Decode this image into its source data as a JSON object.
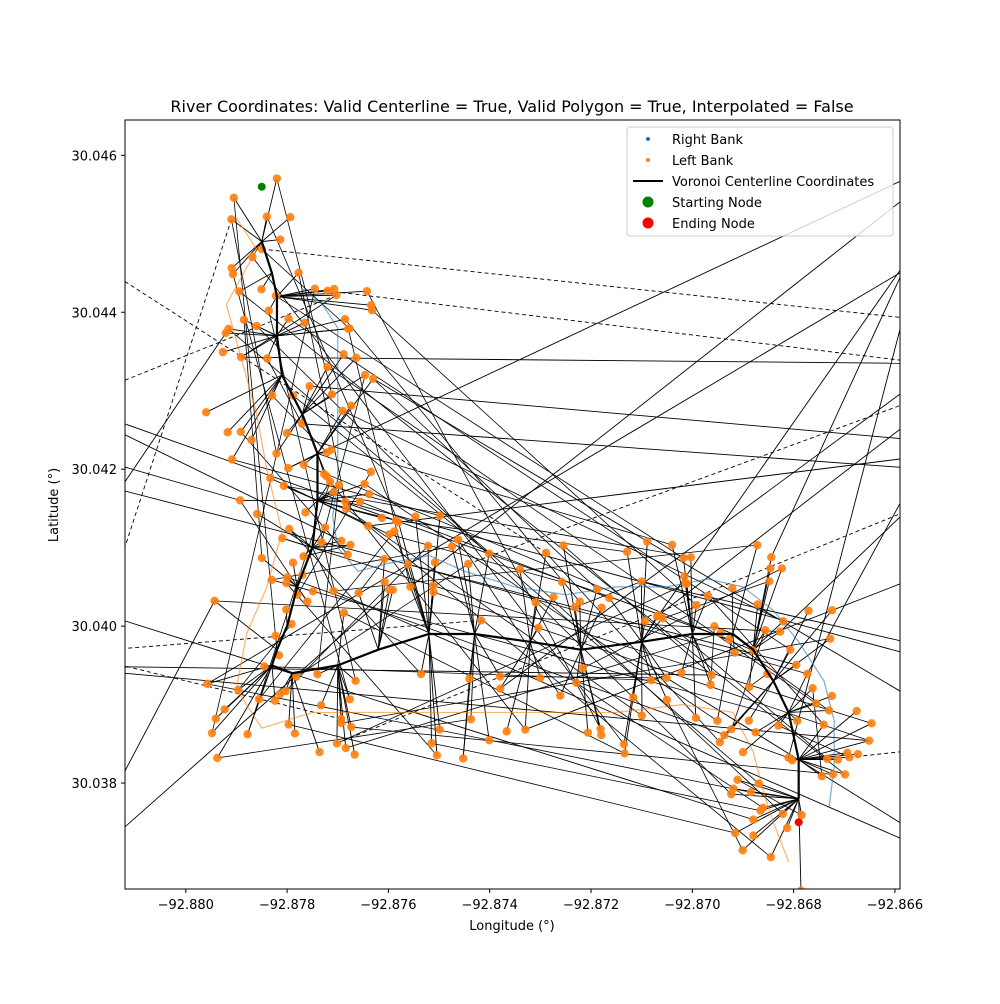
{
  "chart_data": {
    "type": "scatter",
    "title": "River Coordinates: Valid Centerline = True, Valid Polygon = True, Interpolated = False",
    "xlabel": "Longitude (°)",
    "ylabel": "Latitude (°)",
    "xlim": [
      -92.8812,
      -92.8659
    ],
    "ylim": [
      30.03665,
      30.04645
    ],
    "xticks": [
      -92.88,
      -92.878,
      -92.876,
      -92.874,
      -92.872,
      -92.87,
      -92.868,
      -92.866
    ],
    "xtick_labels": [
      "−92.880",
      "−92.878",
      "−92.876",
      "−92.874",
      "−92.872",
      "−92.870",
      "−92.868",
      "−92.866"
    ],
    "yticks": [
      30.038,
      30.04,
      30.042,
      30.044,
      30.046
    ],
    "ytick_labels": [
      "30.038",
      "30.040",
      "30.042",
      "30.044",
      "30.046"
    ],
    "grid": false,
    "legend_position": "upper right",
    "legend": [
      {
        "label": "Right Bank",
        "marker": "dot",
        "color": "#1f77b4"
      },
      {
        "label": "Left Bank",
        "marker": "dot",
        "color": "#ff7f0e"
      },
      {
        "label": "Voronoi Centerline Coordinates",
        "marker": "line",
        "color": "#000000"
      },
      {
        "label": "Starting Node",
        "marker": "circle",
        "color": "#008000"
      },
      {
        "label": "Ending Node",
        "marker": "circle",
        "color": "#ff0000"
      }
    ],
    "series": [
      {
        "name": "Voronoi Centerline Coordinates",
        "color": "#000000",
        "points": [
          [
            -92.8785,
            30.0449
          ],
          [
            -92.8783,
            30.0445
          ],
          [
            -92.8782,
            30.0442
          ],
          [
            -92.8782,
            30.0437
          ],
          [
            -92.8781,
            30.0432
          ],
          [
            -92.8777,
            30.0427
          ],
          [
            -92.8774,
            30.0422
          ],
          [
            -92.8774,
            30.0416
          ],
          [
            -92.8775,
            30.041
          ],
          [
            -92.8778,
            30.0405
          ],
          [
            -92.878,
            30.04
          ],
          [
            -92.8782,
            30.0397
          ],
          [
            -92.8783,
            30.0395
          ],
          [
            -92.8779,
            30.0394
          ],
          [
            -92.877,
            30.0395
          ],
          [
            -92.8762,
            30.0397
          ],
          [
            -92.8752,
            30.0399
          ],
          [
            -92.8743,
            30.0399
          ],
          [
            -92.8732,
            30.0398
          ],
          [
            -92.8722,
            30.0397
          ],
          [
            -92.871,
            30.0398
          ],
          [
            -92.87,
            30.0399
          ],
          [
            -92.8692,
            30.0399
          ],
          [
            -92.8688,
            30.0397
          ],
          [
            -92.8684,
            30.0393
          ],
          [
            -92.8681,
            30.0389
          ],
          [
            -92.8679,
            30.0383
          ],
          [
            -92.8679,
            30.0378
          ]
        ]
      },
      {
        "name": "Right Bank",
        "color": "#1f77b4",
        "points": [
          [
            -92.8777,
            30.0443
          ],
          [
            -92.8773,
            30.0441
          ],
          [
            -92.877,
            30.0438
          ],
          [
            -92.877,
            30.0432
          ],
          [
            -92.877,
            30.0425
          ],
          [
            -92.877,
            30.0419
          ],
          [
            -92.8771,
            30.0414
          ],
          [
            -92.877,
            30.041
          ],
          [
            -92.8766,
            30.0407
          ],
          [
            -92.876,
            30.0408
          ],
          [
            -92.8752,
            30.0409
          ],
          [
            -92.8745,
            30.0407
          ],
          [
            -92.8735,
            30.0405
          ],
          [
            -92.8725,
            30.0404
          ],
          [
            -92.8715,
            30.0405
          ],
          [
            -92.8705,
            30.0405
          ],
          [
            -92.8697,
            30.0406
          ],
          [
            -92.869,
            30.0405
          ],
          [
            -92.8684,
            30.0402
          ],
          [
            -92.8679,
            30.0398
          ],
          [
            -92.8674,
            30.0393
          ],
          [
            -92.8672,
            30.0388
          ],
          [
            -92.8672,
            30.0382
          ],
          [
            -92.8673,
            30.0377
          ]
        ]
      },
      {
        "name": "Left Bank",
        "color": "#ff7f0e",
        "points": [
          [
            -92.879,
            30.0452
          ],
          [
            -92.8786,
            30.0448
          ],
          [
            -92.8792,
            30.0441
          ],
          [
            -92.8789,
            30.0434
          ],
          [
            -92.8786,
            30.0427
          ],
          [
            -92.8784,
            30.042
          ],
          [
            -92.8781,
            30.0412
          ],
          [
            -92.8784,
            30.0405
          ],
          [
            -92.8788,
            30.0399
          ],
          [
            -92.879,
            30.0392
          ],
          [
            -92.8785,
            30.0387
          ],
          [
            -92.8775,
            30.0389
          ],
          [
            -92.8765,
            30.0389
          ],
          [
            -92.8752,
            30.0389
          ],
          [
            -92.874,
            30.0389
          ],
          [
            -92.8728,
            30.0389
          ],
          [
            -92.8715,
            30.0389
          ],
          [
            -92.8702,
            30.039
          ],
          [
            -92.8692,
            30.0389
          ],
          [
            -92.8688,
            30.0384
          ],
          [
            -92.8686,
            30.0379
          ],
          [
            -92.8684,
            30.0375
          ],
          [
            -92.8681,
            30.037
          ]
        ]
      },
      {
        "name": "Starting Node",
        "color": "#008000",
        "points": [
          [
            -92.8785,
            30.0456
          ]
        ]
      },
      {
        "name": "Ending Node",
        "color": "#ff0000",
        "points": [
          [
            -92.8679,
            30.0375
          ]
        ]
      }
    ]
  }
}
